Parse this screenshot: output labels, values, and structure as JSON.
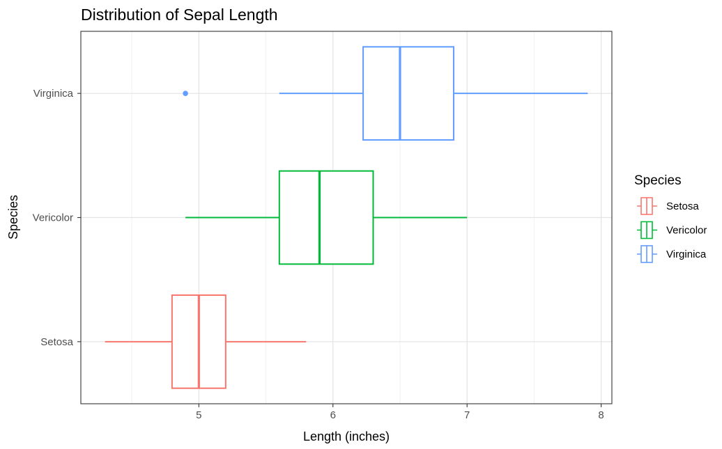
{
  "chart_data": {
    "type": "boxplot",
    "orientation": "horizontal",
    "title": "Distribution of Sepal Length",
    "xlabel": "Length (inches)",
    "ylabel": "Species",
    "xlim": [
      4.12,
      8.08
    ],
    "x_ticks": [
      5,
      6,
      7,
      8
    ],
    "x_tick_labels": [
      "5",
      "6",
      "7",
      "8"
    ],
    "grid": true,
    "legend_position": "right",
    "legend_title": "Species",
    "categories": [
      "Setosa",
      "Vericolor",
      "Virginica"
    ],
    "series": [
      {
        "name": "Setosa",
        "color": "#F8766D",
        "min": 4.3,
        "q1": 4.8,
        "median": 5.0,
        "q3": 5.2,
        "max": 5.8,
        "outliers": []
      },
      {
        "name": "Vericolor",
        "color": "#00BA38",
        "min": 4.9,
        "q1": 5.6,
        "median": 5.9,
        "q3": 6.3,
        "max": 7.0,
        "outliers": []
      },
      {
        "name": "Virginica",
        "color": "#619CFF",
        "min": 5.6,
        "q1": 6.225,
        "median": 6.5,
        "q3": 6.9,
        "max": 7.9,
        "outliers": [
          4.9
        ]
      }
    ]
  }
}
